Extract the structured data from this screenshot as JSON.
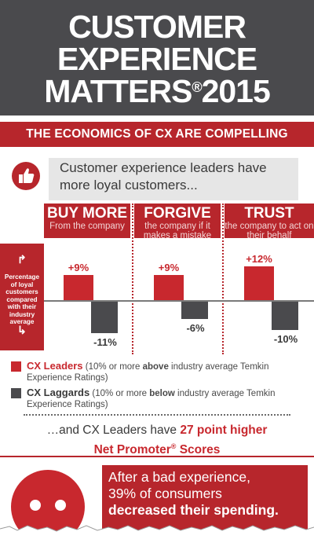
{
  "header": {
    "line1": "CUSTOMER",
    "line2": "EXPERIENCE",
    "line3_word": "MATTERS",
    "line3_reg": "®",
    "line3_year": "2015"
  },
  "banner": {
    "text": "THE ECONOMICS OF CX ARE COMPELLING"
  },
  "leaders_intro": {
    "text": "Customer experience leaders have more loyal customers...",
    "icon": "thumbs-up-icon"
  },
  "side_label": {
    "text": "Percentage of loyal customers compared with their industry average"
  },
  "columns": [
    {
      "title": "BUY MORE",
      "subtitle": "From the company",
      "leaders": "+9%",
      "laggards": "-11%"
    },
    {
      "title": "FORGIVE",
      "subtitle": "the company if it makes a mistake",
      "leaders": "+9%",
      "laggards": "-6%"
    },
    {
      "title": "TRUST",
      "subtitle": "the company to act on their behalf",
      "leaders": "+12%",
      "laggards": "-10%"
    }
  ],
  "chart_data": {
    "type": "bar",
    "categories": [
      "BUY MORE",
      "FORGIVE",
      "TRUST"
    ],
    "series": [
      {
        "name": "CX Leaders",
        "values": [
          9,
          9,
          12
        ]
      },
      {
        "name": "CX Laggards",
        "values": [
          -11,
          -6,
          -10
        ]
      }
    ],
    "ylabel": "Percentage of loyal customers compared with their industry average",
    "colors": {
      "leaders": "#c8282e",
      "laggards": "#4a4a4d"
    }
  },
  "legend": {
    "leaders": {
      "name": "CX Leaders",
      "pre": " (10% or more ",
      "em": "above",
      "post": " industry average Temkin Experience Ratings)"
    },
    "laggards": {
      "name": "CX Laggards",
      "pre": " (10% or more ",
      "em": "below",
      "post": " industry average Temkin Experience Ratings)"
    }
  },
  "nps": {
    "pre": "…and CX Leaders have ",
    "highlight": "27 point higher",
    "line2": "Net Promoter",
    "reg": "®",
    "line2_end": " Scores"
  },
  "bad_experience": {
    "line1": "After a bad experience,",
    "line2": "39% of consumers",
    "line3": "decreased their spending."
  },
  "colors": {
    "brand_red": "#b7262c",
    "header_gray": "#4a4a4d"
  }
}
